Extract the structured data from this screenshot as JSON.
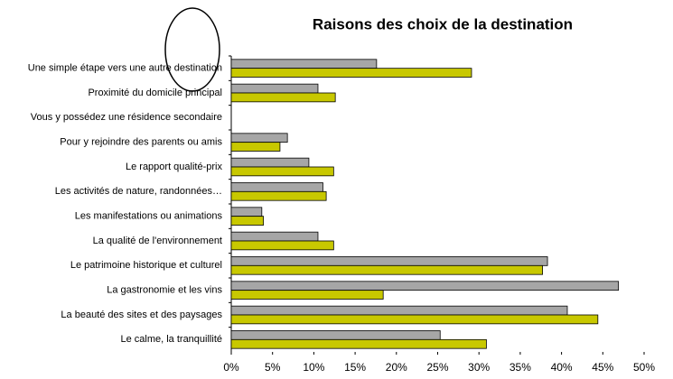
{
  "chart_data": {
    "type": "barh",
    "title": "Raisons des choix de la destination",
    "categories": [
      "Une simple étape vers une autre destination",
      "Proximité du domicile principal",
      "Vous y possédez une résidence secondaire",
      "Pour y rejoindre des parents ou amis",
      "Le rapport qualité-prix",
      "Les activités de nature, randonnées…",
      "Les manifestations ou animations",
      "La qualité de l'environnement",
      "Le patrimoine historique et culturel",
      "La gastronomie et les vins",
      "La beauté des sites et des paysages",
      "Le calme, la tranquillité"
    ],
    "series": [
      {
        "color": "#a6a6a6",
        "values": [
          17.6,
          10.5,
          0,
          6.8,
          9.4,
          11.1,
          3.7,
          10.5,
          38.3,
          46.9,
          40.7,
          25.3
        ]
      },
      {
        "color": "#c8c800",
        "values": [
          29.1,
          12.6,
          0,
          5.9,
          12.4,
          11.5,
          3.9,
          12.4,
          37.7,
          18.4,
          44.4,
          30.9
        ]
      }
    ],
    "xlim": [
      0,
      50
    ],
    "xticks": [
      {
        "value": 0,
        "label": "0%"
      },
      {
        "value": 5,
        "label": "5%"
      },
      {
        "value": 10,
        "label": "10%"
      },
      {
        "value": 15,
        "label": "15%"
      },
      {
        "value": 20,
        "label": "20%"
      },
      {
        "value": 25,
        "label": "25%"
      },
      {
        "value": 30,
        "label": "30%"
      },
      {
        "value": 35,
        "label": "35%"
      },
      {
        "value": 40,
        "label": "40%"
      },
      {
        "value": 45,
        "label": "45%"
      },
      {
        "value": 50,
        "label": "50%"
      }
    ]
  }
}
